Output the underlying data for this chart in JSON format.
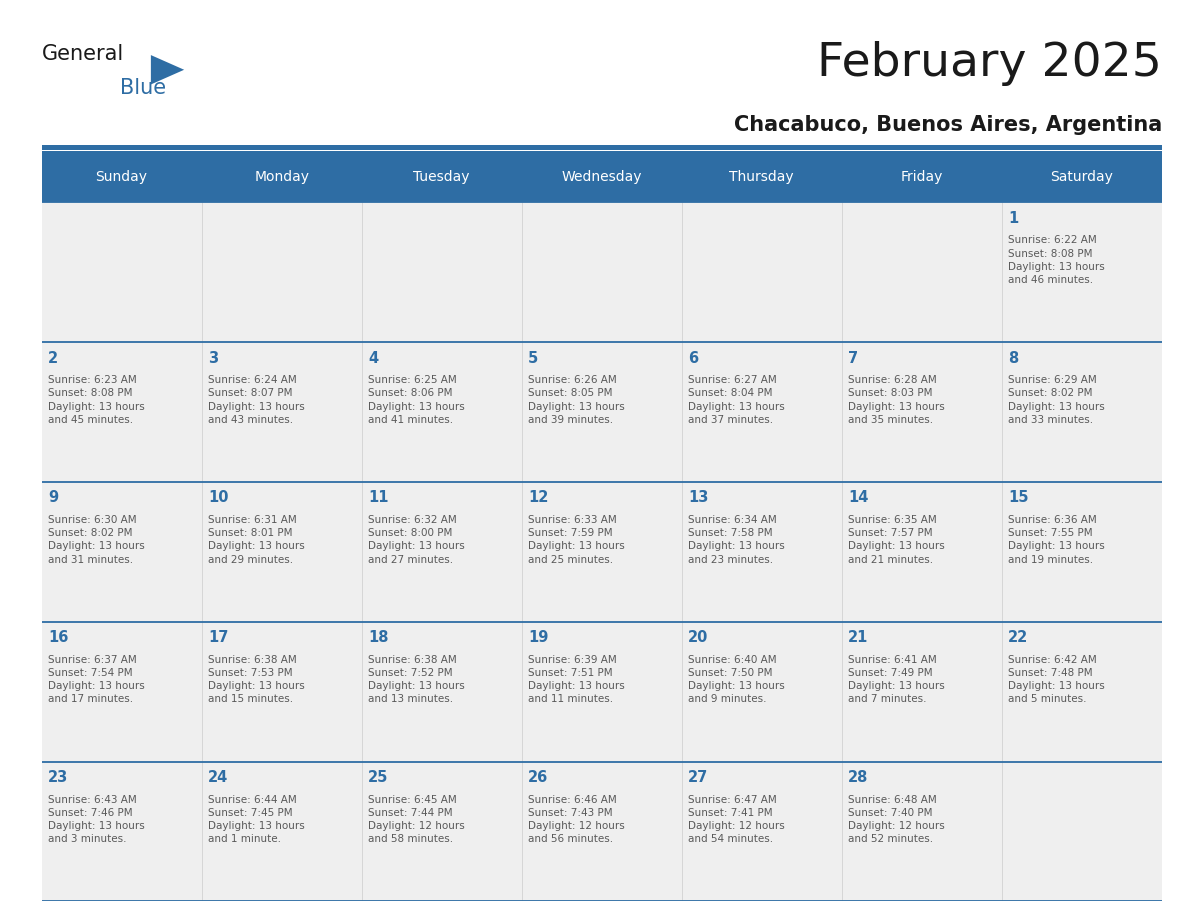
{
  "title": "February 2025",
  "subtitle": "Chacabuco, Buenos Aires, Argentina",
  "header_bg": "#2e6da4",
  "header_text_color": "#ffffff",
  "cell_bg": "#efefef",
  "day_number_color": "#2e6da4",
  "detail_text_color": "#595959",
  "line_color": "#2e6da4",
  "days_of_week": [
    "Sunday",
    "Monday",
    "Tuesday",
    "Wednesday",
    "Thursday",
    "Friday",
    "Saturday"
  ],
  "weeks": [
    [
      {
        "day": "",
        "sunrise": "",
        "sunset": "",
        "daylight": ""
      },
      {
        "day": "",
        "sunrise": "",
        "sunset": "",
        "daylight": ""
      },
      {
        "day": "",
        "sunrise": "",
        "sunset": "",
        "daylight": ""
      },
      {
        "day": "",
        "sunrise": "",
        "sunset": "",
        "daylight": ""
      },
      {
        "day": "",
        "sunrise": "",
        "sunset": "",
        "daylight": ""
      },
      {
        "day": "",
        "sunrise": "",
        "sunset": "",
        "daylight": ""
      },
      {
        "day": "1",
        "sunrise": "6:22 AM",
        "sunset": "8:08 PM",
        "daylight": "13 hours\nand 46 minutes."
      }
    ],
    [
      {
        "day": "2",
        "sunrise": "6:23 AM",
        "sunset": "8:08 PM",
        "daylight": "13 hours\nand 45 minutes."
      },
      {
        "day": "3",
        "sunrise": "6:24 AM",
        "sunset": "8:07 PM",
        "daylight": "13 hours\nand 43 minutes."
      },
      {
        "day": "4",
        "sunrise": "6:25 AM",
        "sunset": "8:06 PM",
        "daylight": "13 hours\nand 41 minutes."
      },
      {
        "day": "5",
        "sunrise": "6:26 AM",
        "sunset": "8:05 PM",
        "daylight": "13 hours\nand 39 minutes."
      },
      {
        "day": "6",
        "sunrise": "6:27 AM",
        "sunset": "8:04 PM",
        "daylight": "13 hours\nand 37 minutes."
      },
      {
        "day": "7",
        "sunrise": "6:28 AM",
        "sunset": "8:03 PM",
        "daylight": "13 hours\nand 35 minutes."
      },
      {
        "day": "8",
        "sunrise": "6:29 AM",
        "sunset": "8:02 PM",
        "daylight": "13 hours\nand 33 minutes."
      }
    ],
    [
      {
        "day": "9",
        "sunrise": "6:30 AM",
        "sunset": "8:02 PM",
        "daylight": "13 hours\nand 31 minutes."
      },
      {
        "day": "10",
        "sunrise": "6:31 AM",
        "sunset": "8:01 PM",
        "daylight": "13 hours\nand 29 minutes."
      },
      {
        "day": "11",
        "sunrise": "6:32 AM",
        "sunset": "8:00 PM",
        "daylight": "13 hours\nand 27 minutes."
      },
      {
        "day": "12",
        "sunrise": "6:33 AM",
        "sunset": "7:59 PM",
        "daylight": "13 hours\nand 25 minutes."
      },
      {
        "day": "13",
        "sunrise": "6:34 AM",
        "sunset": "7:58 PM",
        "daylight": "13 hours\nand 23 minutes."
      },
      {
        "day": "14",
        "sunrise": "6:35 AM",
        "sunset": "7:57 PM",
        "daylight": "13 hours\nand 21 minutes."
      },
      {
        "day": "15",
        "sunrise": "6:36 AM",
        "sunset": "7:55 PM",
        "daylight": "13 hours\nand 19 minutes."
      }
    ],
    [
      {
        "day": "16",
        "sunrise": "6:37 AM",
        "sunset": "7:54 PM",
        "daylight": "13 hours\nand 17 minutes."
      },
      {
        "day": "17",
        "sunrise": "6:38 AM",
        "sunset": "7:53 PM",
        "daylight": "13 hours\nand 15 minutes."
      },
      {
        "day": "18",
        "sunrise": "6:38 AM",
        "sunset": "7:52 PM",
        "daylight": "13 hours\nand 13 minutes."
      },
      {
        "day": "19",
        "sunrise": "6:39 AM",
        "sunset": "7:51 PM",
        "daylight": "13 hours\nand 11 minutes."
      },
      {
        "day": "20",
        "sunrise": "6:40 AM",
        "sunset": "7:50 PM",
        "daylight": "13 hours\nand 9 minutes."
      },
      {
        "day": "21",
        "sunrise": "6:41 AM",
        "sunset": "7:49 PM",
        "daylight": "13 hours\nand 7 minutes."
      },
      {
        "day": "22",
        "sunrise": "6:42 AM",
        "sunset": "7:48 PM",
        "daylight": "13 hours\nand 5 minutes."
      }
    ],
    [
      {
        "day": "23",
        "sunrise": "6:43 AM",
        "sunset": "7:46 PM",
        "daylight": "13 hours\nand 3 minutes."
      },
      {
        "day": "24",
        "sunrise": "6:44 AM",
        "sunset": "7:45 PM",
        "daylight": "13 hours\nand 1 minute."
      },
      {
        "day": "25",
        "sunrise": "6:45 AM",
        "sunset": "7:44 PM",
        "daylight": "12 hours\nand 58 minutes."
      },
      {
        "day": "26",
        "sunrise": "6:46 AM",
        "sunset": "7:43 PM",
        "daylight": "12 hours\nand 56 minutes."
      },
      {
        "day": "27",
        "sunrise": "6:47 AM",
        "sunset": "7:41 PM",
        "daylight": "12 hours\nand 54 minutes."
      },
      {
        "day": "28",
        "sunrise": "6:48 AM",
        "sunset": "7:40 PM",
        "daylight": "12 hours\nand 52 minutes."
      },
      {
        "day": "",
        "sunrise": "",
        "sunset": "",
        "daylight": ""
      }
    ]
  ]
}
